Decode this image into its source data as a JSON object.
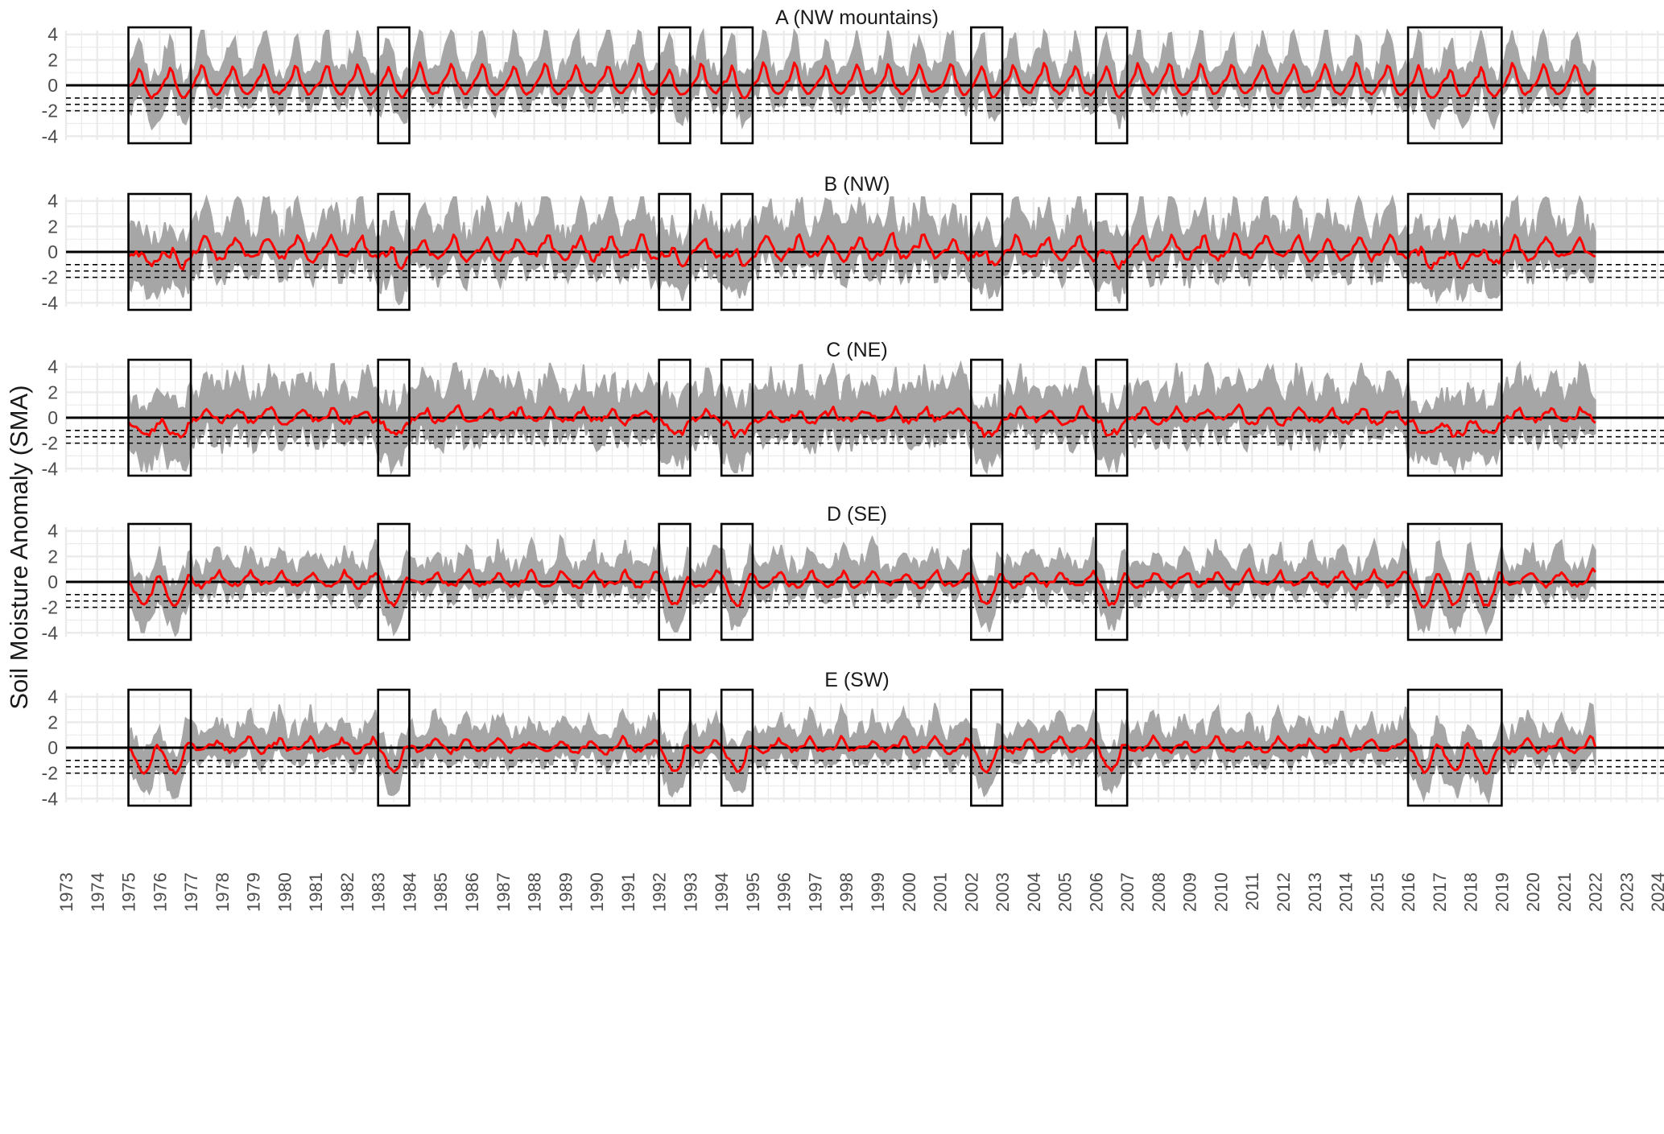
{
  "figure": {
    "ylabel": "Soil Moisture Anomaly (SMA)",
    "colors": {
      "smoothed_line": "#ff0000",
      "raw_band": "#a6a6a6",
      "zero_line": "#000000",
      "threshold_lines": "#000000",
      "drought_box": "#000000",
      "grid": "#ebebeb"
    }
  },
  "chart_data": {
    "type": "line",
    "panels": [
      {
        "title": "A (NW mountains)",
        "region": "A"
      },
      {
        "title": "B (NW)",
        "region": "B"
      },
      {
        "title": "C (NE)",
        "region": "C"
      },
      {
        "title": "D (SE)",
        "region": "D"
      },
      {
        "title": "E (SW)",
        "region": "E"
      }
    ],
    "x_range": [
      1973,
      2024
    ],
    "x_ticks": [
      "1973",
      "1974",
      "1975",
      "1976",
      "1977",
      "1978",
      "1979",
      "1980",
      "1981",
      "1982",
      "1983",
      "1984",
      "1985",
      "1986",
      "1987",
      "1988",
      "1989",
      "1990",
      "1991",
      "1992",
      "1993",
      "1994",
      "1995",
      "1996",
      "1997",
      "1998",
      "1999",
      "2000",
      "2001",
      "2002",
      "2003",
      "2004",
      "2005",
      "2006",
      "2007",
      "2008",
      "2009",
      "2010",
      "2011",
      "2012",
      "2013",
      "2014",
      "2015",
      "2016",
      "2017",
      "2018",
      "2019",
      "2020",
      "2021",
      "2022",
      "2023",
      "2024"
    ],
    "y_range": [
      -4.3,
      4.3
    ],
    "y_ticks": [
      "4",
      "2",
      "0",
      "-2",
      "-4"
    ],
    "y_tick_values": [
      4,
      2,
      0,
      -2,
      -4
    ],
    "data_period": [
      1975.0,
      2022.0
    ],
    "threshold_lines": [
      -1,
      -1.5,
      -2
    ],
    "zero_line": 0,
    "drought_periods": [
      [
        1975.0,
        1977.0
      ],
      [
        1983.0,
        1984.0
      ],
      [
        1992.0,
        1993.0
      ],
      [
        1994.0,
        1995.0
      ],
      [
        2002.0,
        2003.0
      ],
      [
        2006.0,
        2007.0
      ],
      [
        2016.0,
        2019.0
      ]
    ],
    "series": [
      {
        "kind": "smoothed",
        "color": "#ff0000"
      },
      {
        "kind": "raw_range",
        "color": "#a6a6a6"
      }
    ]
  }
}
